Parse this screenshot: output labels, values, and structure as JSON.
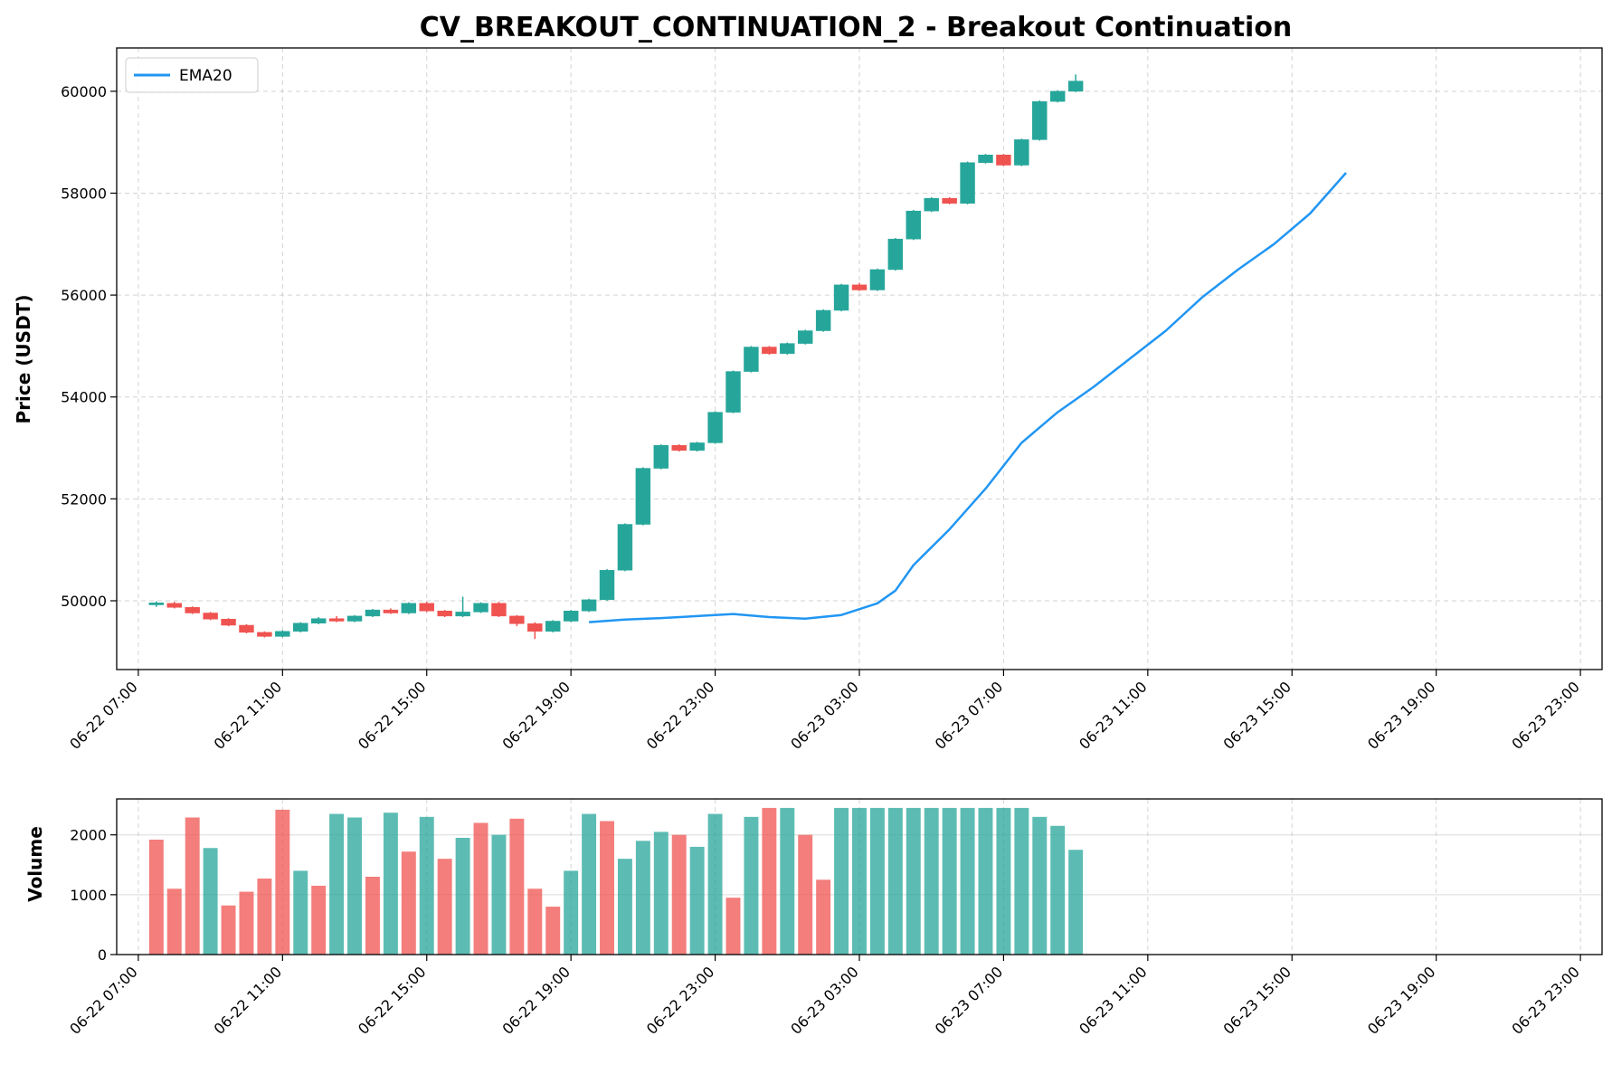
{
  "chart_data": {
    "type": "candlestick",
    "title": "CV_BREAKOUT_CONTINUATION_2 - Breakout Continuation",
    "colors": {
      "up": "#26a69a",
      "down": "#ef5350",
      "ema": "#2196f3",
      "grid": "#b0b0b0"
    },
    "x_axis": {
      "tick_labels": [
        "06-22 07:00",
        "06-22 11:00",
        "06-22 15:00",
        "06-22 19:00",
        "06-22 23:00",
        "06-23 03:00",
        "06-23 07:00",
        "06-23 11:00",
        "06-23 15:00",
        "06-23 19:00",
        "06-23 23:00"
      ],
      "range_hours": [
        -0.6,
        40.6
      ],
      "tick_hours": [
        0,
        4,
        8,
        12,
        16,
        20,
        24,
        28,
        32,
        36,
        40
      ],
      "label_rotation": "45 degrees"
    },
    "price_panel": {
      "ylabel": "Price (USDT)",
      "ylim": [
        48650,
        60850
      ],
      "yticks": [
        50000,
        52000,
        54000,
        56000,
        58000,
        60000
      ],
      "grid": true,
      "legend": {
        "position": "top-left",
        "entries": [
          {
            "name": "EMA20",
            "color": "#2196f3"
          }
        ]
      },
      "ema20": [
        [
          12.5,
          49580
        ],
        [
          13.5,
          49630
        ],
        [
          14.5,
          49660
        ],
        [
          15.5,
          49700
        ],
        [
          16.5,
          49740
        ],
        [
          17.5,
          49680
        ],
        [
          18.5,
          49650
        ],
        [
          19.5,
          49720
        ],
        [
          20.5,
          49950
        ],
        [
          21.0,
          50200
        ],
        [
          21.5,
          50700
        ],
        [
          22.5,
          51400
        ],
        [
          23.5,
          52200
        ],
        [
          24.5,
          53100
        ],
        [
          25.5,
          53700
        ],
        [
          26.5,
          54200
        ],
        [
          27.5,
          54750
        ],
        [
          28.5,
          55300
        ],
        [
          29.5,
          55950
        ],
        [
          30.5,
          56500
        ],
        [
          31.5,
          57000
        ],
        [
          32.5,
          57600
        ],
        [
          33.5,
          58400
        ]
      ],
      "candles": [
        {
          "t": 0.5,
          "open": 49920,
          "close": 49960,
          "high": 49990,
          "low": 49880,
          "dir": "up"
        },
        {
          "t": 1.0,
          "open": 49950,
          "close": 49870,
          "high": 49980,
          "low": 49850,
          "dir": "down"
        },
        {
          "t": 1.5,
          "open": 49870,
          "close": 49760,
          "high": 49890,
          "low": 49740,
          "dir": "down"
        },
        {
          "t": 2.0,
          "open": 49760,
          "close": 49640,
          "high": 49780,
          "low": 49620,
          "dir": "down"
        },
        {
          "t": 2.5,
          "open": 49640,
          "close": 49520,
          "high": 49660,
          "low": 49500,
          "dir": "down"
        },
        {
          "t": 3.0,
          "open": 49520,
          "close": 49380,
          "high": 49540,
          "low": 49360,
          "dir": "down"
        },
        {
          "t": 3.5,
          "open": 49380,
          "close": 49300,
          "high": 49400,
          "low": 49280,
          "dir": "down"
        },
        {
          "t": 4.0,
          "open": 49300,
          "close": 49400,
          "high": 49420,
          "low": 49280,
          "dir": "up"
        },
        {
          "t": 4.5,
          "open": 49400,
          "close": 49560,
          "high": 49580,
          "low": 49380,
          "dir": "up"
        },
        {
          "t": 5.0,
          "open": 49560,
          "close": 49650,
          "high": 49680,
          "low": 49540,
          "dir": "up"
        },
        {
          "t": 5.5,
          "open": 49650,
          "close": 49600,
          "high": 49700,
          "low": 49580,
          "dir": "down"
        },
        {
          "t": 6.0,
          "open": 49600,
          "close": 49700,
          "high": 49720,
          "low": 49580,
          "dir": "up"
        },
        {
          "t": 6.5,
          "open": 49700,
          "close": 49820,
          "high": 49840,
          "low": 49680,
          "dir": "up"
        },
        {
          "t": 7.0,
          "open": 49820,
          "close": 49760,
          "high": 49850,
          "low": 49740,
          "dir": "down"
        },
        {
          "t": 7.5,
          "open": 49760,
          "close": 49950,
          "high": 49970,
          "low": 49740,
          "dir": "up"
        },
        {
          "t": 8.0,
          "open": 49950,
          "close": 49800,
          "high": 49980,
          "low": 49780,
          "dir": "down"
        },
        {
          "t": 8.5,
          "open": 49800,
          "close": 49700,
          "high": 49820,
          "low": 49680,
          "dir": "down"
        },
        {
          "t": 9.0,
          "open": 49700,
          "close": 49780,
          "high": 50080,
          "low": 49680,
          "dir": "up"
        },
        {
          "t": 9.5,
          "open": 49780,
          "close": 49950,
          "high": 49970,
          "low": 49760,
          "dir": "up"
        },
        {
          "t": 10.0,
          "open": 49950,
          "close": 49700,
          "high": 49980,
          "low": 49680,
          "dir": "down"
        },
        {
          "t": 10.5,
          "open": 49700,
          "close": 49550,
          "high": 49720,
          "low": 49500,
          "dir": "down"
        },
        {
          "t": 11.0,
          "open": 49550,
          "close": 49400,
          "high": 49580,
          "low": 49250,
          "dir": "down"
        },
        {
          "t": 11.5,
          "open": 49400,
          "close": 49600,
          "high": 49620,
          "low": 49380,
          "dir": "up"
        },
        {
          "t": 12.0,
          "open": 49600,
          "close": 49800,
          "high": 49820,
          "low": 49580,
          "dir": "up"
        },
        {
          "t": 12.5,
          "open": 49800,
          "close": 50020,
          "high": 50040,
          "low": 49780,
          "dir": "up"
        },
        {
          "t": 13.0,
          "open": 50020,
          "close": 50600,
          "high": 50620,
          "low": 50000,
          "dir": "up"
        },
        {
          "t": 13.5,
          "open": 50600,
          "close": 51500,
          "high": 51520,
          "low": 50580,
          "dir": "up"
        },
        {
          "t": 14.0,
          "open": 51500,
          "close": 52600,
          "high": 52620,
          "low": 51480,
          "dir": "up"
        },
        {
          "t": 14.5,
          "open": 52600,
          "close": 53050,
          "high": 53070,
          "low": 52580,
          "dir": "up"
        },
        {
          "t": 15.0,
          "open": 53050,
          "close": 52950,
          "high": 53070,
          "low": 52930,
          "dir": "down"
        },
        {
          "t": 15.5,
          "open": 52950,
          "close": 53100,
          "high": 53120,
          "low": 52930,
          "dir": "up"
        },
        {
          "t": 16.0,
          "open": 53100,
          "close": 53700,
          "high": 53720,
          "low": 53080,
          "dir": "up"
        },
        {
          "t": 16.5,
          "open": 53700,
          "close": 54500,
          "high": 54520,
          "low": 53680,
          "dir": "up"
        },
        {
          "t": 17.0,
          "open": 54500,
          "close": 54980,
          "high": 55000,
          "low": 54480,
          "dir": "up"
        },
        {
          "t": 17.5,
          "open": 54980,
          "close": 54850,
          "high": 55000,
          "low": 54830,
          "dir": "down"
        },
        {
          "t": 18.0,
          "open": 54850,
          "close": 55050,
          "high": 55070,
          "low": 54830,
          "dir": "up"
        },
        {
          "t": 18.5,
          "open": 55050,
          "close": 55300,
          "high": 55320,
          "low": 55030,
          "dir": "up"
        },
        {
          "t": 19.0,
          "open": 55300,
          "close": 55700,
          "high": 55720,
          "low": 55280,
          "dir": "up"
        },
        {
          "t": 19.5,
          "open": 55700,
          "close": 56200,
          "high": 56220,
          "low": 55680,
          "dir": "up"
        },
        {
          "t": 20.0,
          "open": 56200,
          "close": 56100,
          "high": 56240,
          "low": 56080,
          "dir": "down"
        },
        {
          "t": 20.5,
          "open": 56100,
          "close": 56500,
          "high": 56520,
          "low": 56080,
          "dir": "up"
        },
        {
          "t": 21.0,
          "open": 56500,
          "close": 57100,
          "high": 57120,
          "low": 56480,
          "dir": "up"
        },
        {
          "t": 21.5,
          "open": 57100,
          "close": 57650,
          "high": 57670,
          "low": 57080,
          "dir": "up"
        },
        {
          "t": 22.0,
          "open": 57650,
          "close": 57900,
          "high": 57920,
          "low": 57630,
          "dir": "up"
        },
        {
          "t": 22.5,
          "open": 57900,
          "close": 57800,
          "high": 57920,
          "low": 57780,
          "dir": "down"
        },
        {
          "t": 23.0,
          "open": 57800,
          "close": 58600,
          "high": 58620,
          "low": 57780,
          "dir": "up"
        },
        {
          "t": 23.5,
          "open": 58600,
          "close": 58750,
          "high": 58770,
          "low": 58580,
          "dir": "up"
        },
        {
          "t": 24.0,
          "open": 58750,
          "close": 58550,
          "high": 58770,
          "low": 58530,
          "dir": "down"
        },
        {
          "t": 24.5,
          "open": 58550,
          "close": 59050,
          "high": 59070,
          "low": 58530,
          "dir": "up"
        },
        {
          "t": 25.0,
          "open": 59050,
          "close": 59800,
          "high": 59820,
          "low": 59030,
          "dir": "up"
        },
        {
          "t": 25.5,
          "open": 59800,
          "close": 60000,
          "high": 60020,
          "low": 59780,
          "dir": "up"
        },
        {
          "t": 26.0,
          "open": 60000,
          "close": 60200,
          "high": 60330,
          "low": 59980,
          "dir": "up"
        }
      ]
    },
    "volume_panel": {
      "ylabel": "Volume",
      "ylim": [
        0,
        2600
      ],
      "yticks": [
        0,
        1000,
        2000
      ],
      "bars": [
        {
          "t": 0.5,
          "v": 1920,
          "dir": "down"
        },
        {
          "t": 1.0,
          "v": 1100,
          "dir": "down"
        },
        {
          "t": 1.5,
          "v": 2290,
          "dir": "down"
        },
        {
          "t": 2.0,
          "v": 1780,
          "dir": "up"
        },
        {
          "t": 2.5,
          "v": 820,
          "dir": "down"
        },
        {
          "t": 3.0,
          "v": 1050,
          "dir": "down"
        },
        {
          "t": 3.5,
          "v": 1270,
          "dir": "down"
        },
        {
          "t": 4.0,
          "v": 2420,
          "dir": "down"
        },
        {
          "t": 4.5,
          "v": 1400,
          "dir": "up"
        },
        {
          "t": 5.0,
          "v": 1150,
          "dir": "down"
        },
        {
          "t": 5.5,
          "v": 2350,
          "dir": "up"
        },
        {
          "t": 6.0,
          "v": 2290,
          "dir": "up"
        },
        {
          "t": 6.5,
          "v": 1300,
          "dir": "down"
        },
        {
          "t": 7.0,
          "v": 2370,
          "dir": "up"
        },
        {
          "t": 7.5,
          "v": 1720,
          "dir": "down"
        },
        {
          "t": 8.0,
          "v": 2300,
          "dir": "up"
        },
        {
          "t": 8.5,
          "v": 1600,
          "dir": "down"
        },
        {
          "t": 9.0,
          "v": 1950,
          "dir": "up"
        },
        {
          "t": 9.5,
          "v": 2200,
          "dir": "down"
        },
        {
          "t": 10.0,
          "v": 2000,
          "dir": "up"
        },
        {
          "t": 10.5,
          "v": 2270,
          "dir": "down"
        },
        {
          "t": 11.0,
          "v": 1100,
          "dir": "down"
        },
        {
          "t": 11.5,
          "v": 800,
          "dir": "down"
        },
        {
          "t": 12.0,
          "v": 1400,
          "dir": "up"
        },
        {
          "t": 12.5,
          "v": 2350,
          "dir": "up"
        },
        {
          "t": 13.0,
          "v": 2230,
          "dir": "down"
        },
        {
          "t": 13.5,
          "v": 1600,
          "dir": "up"
        },
        {
          "t": 14.0,
          "v": 1900,
          "dir": "up"
        },
        {
          "t": 14.5,
          "v": 2050,
          "dir": "up"
        },
        {
          "t": 15.0,
          "v": 2000,
          "dir": "down"
        },
        {
          "t": 15.5,
          "v": 1800,
          "dir": "up"
        },
        {
          "t": 16.0,
          "v": 2350,
          "dir": "up"
        },
        {
          "t": 16.5,
          "v": 950,
          "dir": "down"
        },
        {
          "t": 17.0,
          "v": 2300,
          "dir": "up"
        },
        {
          "t": 17.5,
          "v": 2450,
          "dir": "down"
        },
        {
          "t": 18.0,
          "v": 2450,
          "dir": "up"
        },
        {
          "t": 18.5,
          "v": 2000,
          "dir": "down"
        },
        {
          "t": 19.0,
          "v": 1250,
          "dir": "down"
        },
        {
          "t": 19.5,
          "v": 2450,
          "dir": "up"
        },
        {
          "t": 20.0,
          "v": 2450,
          "dir": "up"
        },
        {
          "t": 20.5,
          "v": 2450,
          "dir": "up"
        },
        {
          "t": 21.0,
          "v": 2450,
          "dir": "up"
        },
        {
          "t": 21.5,
          "v": 2450,
          "dir": "up"
        },
        {
          "t": 22.0,
          "v": 2450,
          "dir": "up"
        },
        {
          "t": 22.5,
          "v": 2450,
          "dir": "up"
        },
        {
          "t": 23.0,
          "v": 2450,
          "dir": "up"
        },
        {
          "t": 23.5,
          "v": 2450,
          "dir": "up"
        },
        {
          "t": 24.0,
          "v": 2450,
          "dir": "up"
        },
        {
          "t": 24.5,
          "v": 2450,
          "dir": "up"
        },
        {
          "t": 25.0,
          "v": 2300,
          "dir": "up"
        },
        {
          "t": 25.5,
          "v": 2150,
          "dir": "up"
        },
        {
          "t": 26.0,
          "v": 1750,
          "dir": "up"
        }
      ]
    }
  }
}
